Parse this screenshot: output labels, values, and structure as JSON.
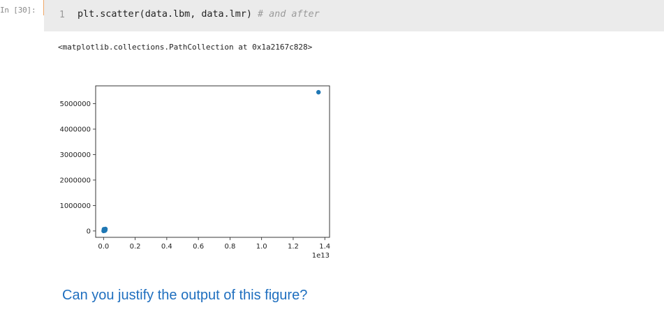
{
  "cell": {
    "prompt": "In [30]:",
    "line_number": "1",
    "code": "plt.scatter(data.lbm, data.lmr) ",
    "comment": "# and after"
  },
  "output": {
    "repr": "<matplotlib.collections.PathCollection at 0x1a2167c828>"
  },
  "chart_data": {
    "type": "scatter",
    "xlim": [
      -0.05,
      1.43
    ],
    "ylim": [
      -250000,
      5700000
    ],
    "x_offset_label": "1e13",
    "x_ticks": [
      0.0,
      0.2,
      0.4,
      0.6,
      0.8,
      1.0,
      1.2,
      1.4
    ],
    "x_tick_labels": [
      "0.0",
      "0.2",
      "0.4",
      "0.6",
      "0.8",
      "1.0",
      "1.2",
      "1.4"
    ],
    "y_ticks": [
      0,
      1000000,
      2000000,
      3000000,
      4000000,
      5000000
    ],
    "y_tick_labels": [
      "0",
      "1000000",
      "2000000",
      "3000000",
      "4000000",
      "5000000"
    ],
    "grid": false,
    "marker_color": "#1f77b4",
    "points": [
      {
        "x": 0.0,
        "y": 0
      },
      {
        "x": 0.003,
        "y": 20000
      },
      {
        "x": 0.006,
        "y": 40000
      },
      {
        "x": 0.01,
        "y": 60000
      },
      {
        "x": 0.012,
        "y": 80000
      },
      {
        "x": 0.005,
        "y": 50000
      },
      {
        "x": 0.008,
        "y": 10000
      },
      {
        "x": 0.002,
        "y": 70000
      },
      {
        "x": 0.011,
        "y": 30000
      },
      {
        "x": 1.36,
        "y": 5450000
      }
    ]
  },
  "markdown": {
    "question": "Can you justify the output of this figure?"
  }
}
